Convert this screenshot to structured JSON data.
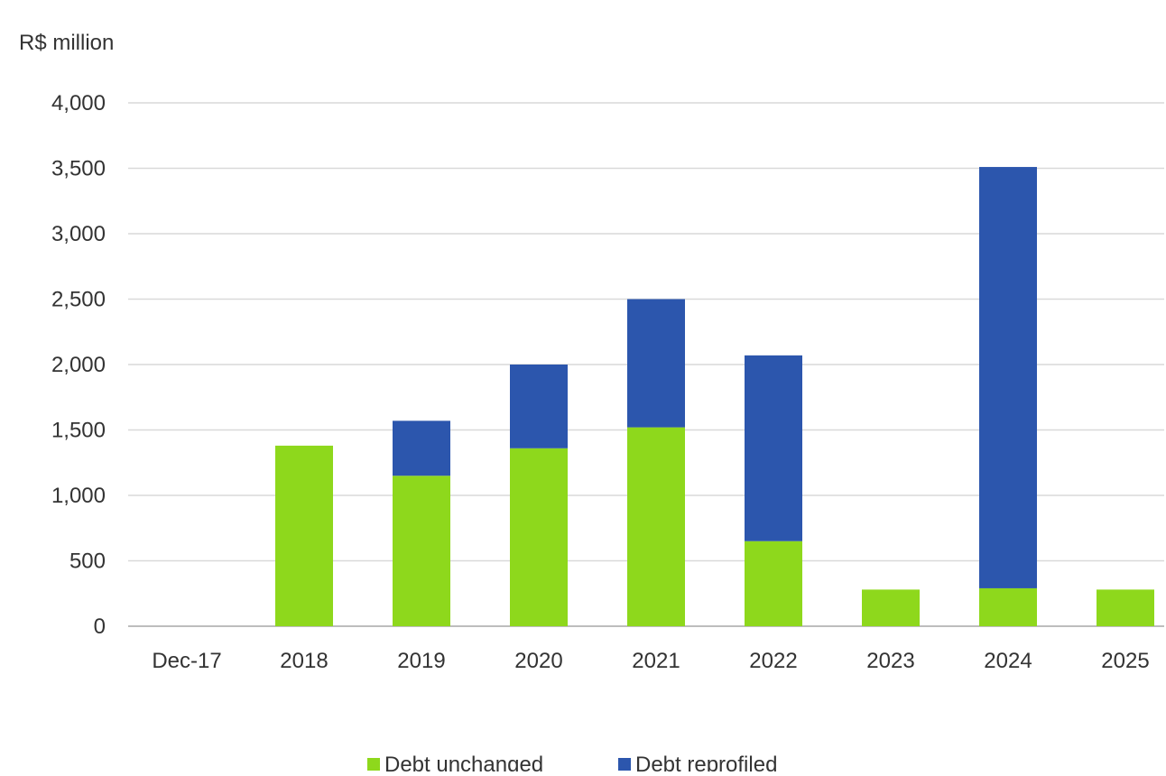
{
  "chart_data": {
    "type": "bar",
    "stacked": true,
    "ylabel": "R$ million",
    "xlabel": "",
    "title": "",
    "ylim": [
      0,
      4000
    ],
    "yticks": [
      0,
      500,
      1000,
      1500,
      2000,
      2500,
      3000,
      3500,
      4000
    ],
    "ytick_labels": [
      "0",
      "500",
      "1,000",
      "1,500",
      "2,000",
      "2,500",
      "3,000",
      "3,500",
      "4,000"
    ],
    "grid": true,
    "legend_position": "bottom",
    "categories": [
      "Dec-17",
      "2018",
      "2019",
      "2020",
      "2021",
      "2022",
      "2023",
      "2024",
      "2025"
    ],
    "series": [
      {
        "name": "Debt unchanged",
        "color": "#8ed81c",
        "values": [
          0,
          1380,
          1150,
          1360,
          1520,
          650,
          280,
          290,
          280
        ]
      },
      {
        "name": "Debt reprofiled",
        "color": "#2c56ad",
        "values": [
          0,
          0,
          420,
          640,
          980,
          1420,
          0,
          3220,
          0
        ]
      }
    ]
  }
}
